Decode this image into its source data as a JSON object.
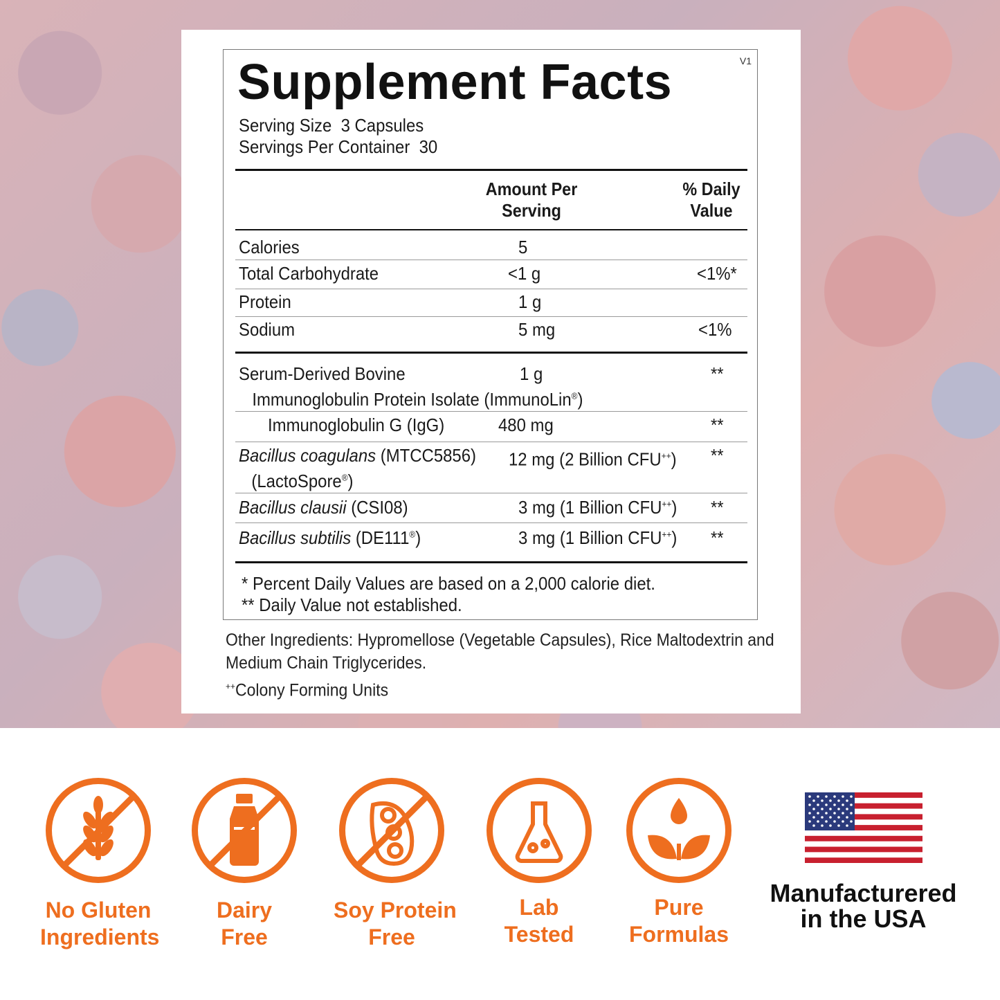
{
  "panel": {
    "title": "Supplement Facts",
    "version": "V1",
    "serving_size": "Serving Size  3 Capsules",
    "servings_per_container": "Servings Per Container  30",
    "header_amount_1": "Amount Per",
    "header_amount_2": "Serving",
    "header_dv_1": "% Daily",
    "header_dv_2": "Value",
    "nutrients": [
      {
        "name": "Calories",
        "amount": "5",
        "dv": ""
      },
      {
        "name": "Total Carbohydrate",
        "amount": "<1 g",
        "dv": "<1%*"
      },
      {
        "name": "Protein",
        "amount": "1 g",
        "dv": ""
      },
      {
        "name": "Sodium",
        "amount": "5 mg",
        "dv": "<1%"
      }
    ],
    "ingredients": [
      {
        "name_1": "Serum-Derived Bovine",
        "name_2": "Immunoglobulin Protein Isolate (ImmunoLin",
        "reg": "®",
        "name_2_end": ")",
        "amount": "1 g",
        "dv": "**"
      },
      {
        "name": "Immunoglobulin G (IgG)",
        "amount": "480 mg",
        "dv": "**"
      },
      {
        "name_italic": "Bacillus coagulans",
        "name_rest": " (MTCC5856)",
        "name_2": "(LactoSpore",
        "reg": "®",
        "name_2_end": ")",
        "amount": "12 mg (2 Billion CFU",
        "amount_sup": "++",
        "amount_end": ")",
        "dv": "**"
      },
      {
        "name_italic": "Bacillus clausii",
        "name_rest": " (CSI08)",
        "amount": "3 mg (1 Billion CFU",
        "amount_sup": "++",
        "amount_end": ")",
        "dv": "**"
      },
      {
        "name_italic": "Bacillus subtilis",
        "name_rest": " (DE111",
        "reg": "®",
        "name_end": ")",
        "amount": "3 mg (1 Billion CFU",
        "amount_sup": "++",
        "amount_end": ")",
        "dv": "**"
      }
    ],
    "footnote_1": "* Percent Daily Values are based on a 2,000 calorie diet.",
    "footnote_2": "** Daily Value not established."
  },
  "other_ingredients": {
    "line_1": "Other Ingredients: Hypromellose (Vegetable Capsules), Rice Maltodextrin and",
    "line_2": "Medium Chain Triglycerides.",
    "cfu_sup": "++",
    "cfu_text": "Colony Forming Units"
  },
  "badges": [
    {
      "icon": "wheat-icon",
      "line_1": "No Gluten",
      "line_2": "Ingredients"
    },
    {
      "icon": "milk-bottle-icon",
      "line_1": "Dairy",
      "line_2": "Free"
    },
    {
      "icon": "soybean-icon",
      "line_1": "Soy Protein",
      "line_2": "Free"
    },
    {
      "icon": "flask-icon",
      "line_1": "Lab",
      "line_2": "Tested"
    },
    {
      "icon": "leaf-drop-icon",
      "line_1": "Pure",
      "line_2": "Formulas"
    }
  ],
  "usa": {
    "icon": "us-flag-icon",
    "line_1": "Manufacturered",
    "line_2": "in the USA"
  },
  "colors": {
    "accent": "#ee6e1f",
    "text": "#111111"
  }
}
